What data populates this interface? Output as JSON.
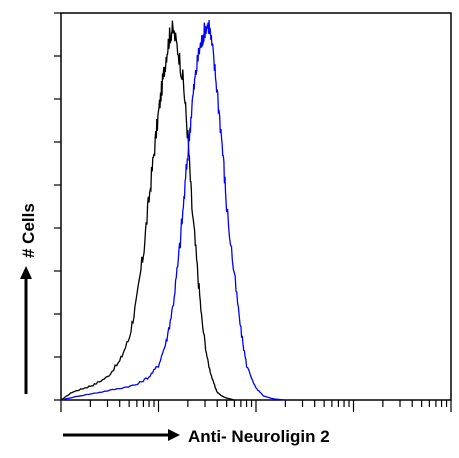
{
  "chart_data": {
    "type": "line",
    "title": "",
    "xlabel": "Anti- Neuroligin 2",
    "ylabel": "# Cells",
    "x_scale": "log",
    "xlim": [
      1,
      10000
    ],
    "ylim": [
      0,
      100
    ],
    "grid": false,
    "legend": "none",
    "series": [
      {
        "color": "#000000",
        "x": [
          1,
          1.3,
          1.7,
          2.2,
          3,
          4,
          5,
          6,
          7,
          8,
          9,
          10,
          11,
          12,
          13,
          14,
          16,
          18,
          20,
          22,
          25,
          28,
          32,
          36,
          40,
          45,
          50,
          60
        ],
        "y": [
          0,
          2,
          3,
          4,
          6,
          10,
          16,
          26,
          38,
          52,
          64,
          74,
          82,
          89,
          94,
          96,
          90,
          82,
          68,
          50,
          34,
          20,
          10,
          5,
          2,
          1,
          0.5,
          0
        ]
      },
      {
        "color": "#0000ff",
        "x": [
          1,
          1.5,
          2.5,
          4,
          6,
          8,
          10,
          12,
          14,
          16,
          18,
          20,
          22,
          24,
          26,
          28,
          30,
          33,
          36,
          40,
          45,
          50,
          60,
          70,
          80,
          100,
          120,
          150,
          200
        ],
        "y": [
          0,
          1,
          2,
          3,
          4,
          6,
          9,
          15,
          24,
          36,
          50,
          64,
          76,
          84,
          90,
          93,
          96,
          97,
          90,
          80,
          66,
          50,
          32,
          18,
          9,
          3,
          1,
          0.3,
          0
        ]
      }
    ]
  }
}
